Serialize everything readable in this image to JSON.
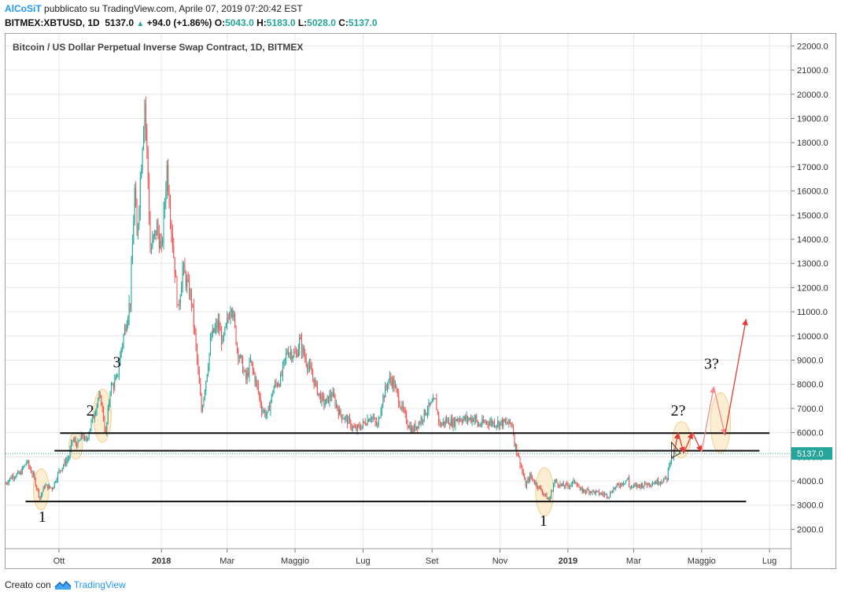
{
  "header": {
    "author": "AlCoSiT",
    "published_text": "pubblicato su TradingView.com, Aprile 07, 2019 07:20:42 EST",
    "symbol": "BITMEX:XBTUSD, 1D",
    "last": "5137.0",
    "arrow": "▲",
    "change": "+94.0 (+1.86%)",
    "o_label": "O:",
    "o_value": "5043.0",
    "h_label": "H:",
    "h_value": "5183.0",
    "l_label": "L:",
    "l_value": "5028.0",
    "c_label": "C:",
    "c_value": "5137.0"
  },
  "footer": {
    "created_with": "Creato con",
    "brand": "TradingView"
  },
  "colors": {
    "up": "#26a69a",
    "down": "#ef5350",
    "price_tag": "#26a69a",
    "arrow_red": "#e53935",
    "arrow_pink": "#f48a8a",
    "ellipse_fill": "#fbe8c4",
    "grid": "#e8e8e8"
  },
  "chart_data": {
    "type": "candlestick",
    "title": "Bitcoin / US Dollar Perpetual Inverse Swap Contract, 1D, BITMEX",
    "xlabel": "",
    "ylabel": "",
    "ylim": [
      1200,
      22500
    ],
    "y_ticks": [
      "2000.0",
      "3000.0",
      "4000.0",
      "5000.0",
      "6000.0",
      "7000.0",
      "8000.0",
      "9000.0",
      "10000.0",
      "11000.0",
      "12000.0",
      "13000.0",
      "14000.0",
      "15000.0",
      "16000.0",
      "17000.0",
      "18000.0",
      "19000.0",
      "20000.0",
      "21000.0",
      "22000.0"
    ],
    "x_range": [
      "2017-08-14",
      "2019-07-20"
    ],
    "x_ticks": [
      {
        "label": "Ott",
        "date": "2017-10-01",
        "bold": false
      },
      {
        "label": "2018",
        "date": "2018-01-01",
        "bold": true
      },
      {
        "label": "Mar",
        "date": "2018-03-01",
        "bold": false
      },
      {
        "label": "Maggio",
        "date": "2018-05-01",
        "bold": false
      },
      {
        "label": "Lug",
        "date": "2018-07-01",
        "bold": false
      },
      {
        "label": "Set",
        "date": "2018-09-01",
        "bold": false
      },
      {
        "label": "Nov",
        "date": "2018-11-01",
        "bold": false
      },
      {
        "label": "2019",
        "date": "2019-01-01",
        "bold": true
      },
      {
        "label": "Mar",
        "date": "2019-03-01",
        "bold": false
      },
      {
        "label": "Maggio",
        "date": "2019-05-01",
        "bold": false
      },
      {
        "label": "Lug",
        "date": "2019-07-01",
        "bold": false
      }
    ],
    "price_path": [
      [
        "2017-08-14",
        3900
      ],
      [
        "2017-08-20",
        4200
      ],
      [
        "2017-08-27",
        4300
      ],
      [
        "2017-09-02",
        4800
      ],
      [
        "2017-09-08",
        4200
      ],
      [
        "2017-09-14",
        3300
      ],
      [
        "2017-09-18",
        3800
      ],
      [
        "2017-09-25",
        3700
      ],
      [
        "2017-10-01",
        4400
      ],
      [
        "2017-10-10",
        5000
      ],
      [
        "2017-10-13",
        5700
      ],
      [
        "2017-10-18",
        5500
      ],
      [
        "2017-10-22",
        5900
      ],
      [
        "2017-10-25",
        5600
      ],
      [
        "2017-11-01",
        6700
      ],
      [
        "2017-11-05",
        7400
      ],
      [
        "2017-11-08",
        7300
      ],
      [
        "2017-11-12",
        5900
      ],
      [
        "2017-11-16",
        7800
      ],
      [
        "2017-11-22",
        8200
      ],
      [
        "2017-11-26",
        9500
      ],
      [
        "2017-11-30",
        10500
      ],
      [
        "2017-12-04",
        11500
      ],
      [
        "2017-12-08",
        16000
      ],
      [
        "2017-12-10",
        14000
      ],
      [
        "2017-12-13",
        16500
      ],
      [
        "2017-12-17",
        19700
      ],
      [
        "2017-12-20",
        16500
      ],
      [
        "2017-12-22",
        13500
      ],
      [
        "2017-12-25",
        14000
      ],
      [
        "2017-12-28",
        14500
      ],
      [
        "2018-01-01",
        13500
      ],
      [
        "2018-01-06",
        17000
      ],
      [
        "2018-01-10",
        14500
      ],
      [
        "2018-01-16",
        11000
      ],
      [
        "2018-01-20",
        12800
      ],
      [
        "2018-01-28",
        11500
      ],
      [
        "2018-02-02",
        9000
      ],
      [
        "2018-02-06",
        6900
      ],
      [
        "2018-02-10",
        8200
      ],
      [
        "2018-02-15",
        10000
      ],
      [
        "2018-02-21",
        10500
      ],
      [
        "2018-02-25",
        9700
      ],
      [
        "2018-03-05",
        11400
      ],
      [
        "2018-03-10",
        9500
      ],
      [
        "2018-03-18",
        8200
      ],
      [
        "2018-03-22",
        8900
      ],
      [
        "2018-03-28",
        7900
      ],
      [
        "2018-04-01",
        7000
      ],
      [
        "2018-04-06",
        6700
      ],
      [
        "2018-04-12",
        7900
      ],
      [
        "2018-04-18",
        8200
      ],
      [
        "2018-04-24",
        9400
      ],
      [
        "2018-05-02",
        9200
      ],
      [
        "2018-05-05",
        9800
      ],
      [
        "2018-05-10",
        9100
      ],
      [
        "2018-05-16",
        8400
      ],
      [
        "2018-05-23",
        7500
      ],
      [
        "2018-05-28",
        7200
      ],
      [
        "2018-06-03",
        7600
      ],
      [
        "2018-06-10",
        6800
      ],
      [
        "2018-06-17",
        6500
      ],
      [
        "2018-06-24",
        6100
      ],
      [
        "2018-06-30",
        6300
      ],
      [
        "2018-07-08",
        6700
      ],
      [
        "2018-07-14",
        6250
      ],
      [
        "2018-07-18",
        7300
      ],
      [
        "2018-07-24",
        8200
      ],
      [
        "2018-07-28",
        8100
      ],
      [
        "2018-08-04",
        7100
      ],
      [
        "2018-08-10",
        6400
      ],
      [
        "2018-08-14",
        6100
      ],
      [
        "2018-08-20",
        6400
      ],
      [
        "2018-08-28",
        7000
      ],
      [
        "2018-09-04",
        7300
      ],
      [
        "2018-09-08",
        6300
      ],
      [
        "2018-09-14",
        6500
      ],
      [
        "2018-09-20",
        6400
      ],
      [
        "2018-09-24",
        6600
      ],
      [
        "2018-10-01",
        6550
      ],
      [
        "2018-10-10",
        6600
      ],
      [
        "2018-10-12",
        6300
      ],
      [
        "2018-10-20",
        6450
      ],
      [
        "2018-10-28",
        6400
      ],
      [
        "2018-11-05",
        6400
      ],
      [
        "2018-11-12",
        6350
      ],
      [
        "2018-11-14",
        5600
      ],
      [
        "2018-11-20",
        4600
      ],
      [
        "2018-11-24",
        3800
      ],
      [
        "2018-11-28",
        4200
      ],
      [
        "2018-12-03",
        3900
      ],
      [
        "2018-12-10",
        3500
      ],
      [
        "2018-12-15",
        3200
      ],
      [
        "2018-12-20",
        4000
      ],
      [
        "2018-12-26",
        3800
      ],
      [
        "2019-01-01",
        3800
      ],
      [
        "2019-01-08",
        4000
      ],
      [
        "2019-01-12",
        3600
      ],
      [
        "2019-01-20",
        3600
      ],
      [
        "2019-01-28",
        3500
      ],
      [
        "2019-02-07",
        3400
      ],
      [
        "2019-02-10",
        3650
      ],
      [
        "2019-02-18",
        3900
      ],
      [
        "2019-02-24",
        4100
      ],
      [
        "2019-02-25",
        3750
      ],
      [
        "2019-03-05",
        3800
      ],
      [
        "2019-03-15",
        3900
      ],
      [
        "2019-03-25",
        4000
      ],
      [
        "2019-03-31",
        4100
      ],
      [
        "2019-04-02",
        4800
      ],
      [
        "2019-04-07",
        5137
      ]
    ],
    "last_price": "5137.0",
    "levels": [
      {
        "name": "support",
        "y": 3150,
        "from": "2017-09-01",
        "to": "2019-06-10"
      },
      {
        "name": "mid",
        "y": 5250,
        "from": "2017-09-27",
        "to": "2019-06-22"
      },
      {
        "name": "resistance",
        "y": 5980,
        "from": "2017-10-02",
        "to": "2019-07-01"
      }
    ],
    "annotations": [
      {
        "text": "1",
        "date": "2017-09-16",
        "y": 2300
      },
      {
        "text": "2",
        "date": "2017-10-29",
        "y": 6700
      },
      {
        "text": "3",
        "date": "2017-11-22",
        "y": 8700
      },
      {
        "text": "1",
        "date": "2018-12-10",
        "y": 2150
      },
      {
        "text": "2?",
        "date": "2019-04-10",
        "y": 6700
      },
      {
        "text": "3?",
        "date": "2019-05-10",
        "y": 8650
      }
    ],
    "highlight_ellipses": [
      {
        "date": "2017-09-15",
        "y": 3650,
        "rx_days": 7,
        "ry": 850
      },
      {
        "date": "2017-10-16",
        "y": 5450,
        "rx_days": 6,
        "ry": 550
      },
      {
        "date": "2017-11-09",
        "y": 6700,
        "rx_days": 8,
        "ry": 1100
      },
      {
        "date": "2018-12-11",
        "y": 3550,
        "rx_days": 8,
        "ry": 1000
      },
      {
        "date": "2019-04-13",
        "y": 5700,
        "rx_days": 8,
        "ry": 750
      },
      {
        "date": "2019-05-18",
        "y": 6400,
        "rx_days": 9,
        "ry": 1250
      }
    ],
    "projection_paths": [
      {
        "color": "red",
        "points": [
          [
            "2019-04-07",
            5300
          ],
          [
            "2019-04-10",
            6000
          ],
          [
            "2019-04-15",
            5150
          ],
          [
            "2019-04-23",
            6000
          ],
          [
            "2019-05-01",
            5200
          ]
        ]
      },
      {
        "color": "pink",
        "points": [
          [
            "2019-05-01",
            5200
          ],
          [
            "2019-05-12",
            7900
          ],
          [
            "2019-05-22",
            5900
          ]
        ]
      },
      {
        "color": "red",
        "points": [
          [
            "2019-05-22",
            5900
          ],
          [
            "2019-06-10",
            10700
          ]
        ]
      }
    ],
    "pennant": [
      [
        "2019-04-04",
        4950
      ],
      [
        "2019-04-12",
        5150
      ],
      [
        "2019-04-04",
        5600
      ]
    ],
    "grid": true,
    "price_scale": "right"
  }
}
